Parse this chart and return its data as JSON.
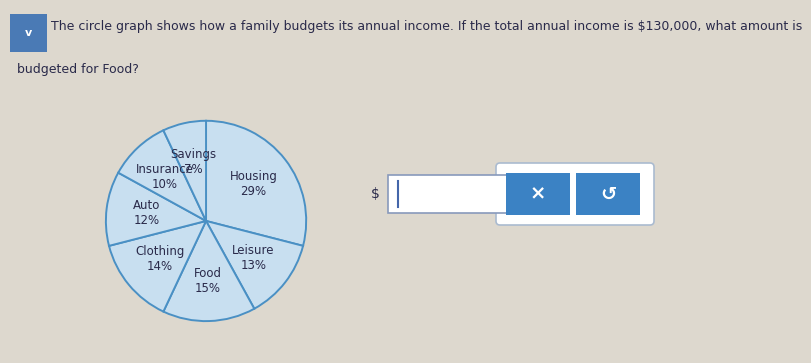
{
  "slices": [
    {
      "label": "Housing\n29%",
      "pct": 29
    },
    {
      "label": "Leisure\n13%",
      "pct": 13
    },
    {
      "label": "Food\n15%",
      "pct": 15
    },
    {
      "label": "Clothing\n14%",
      "pct": 14
    },
    {
      "label": "Auto\n12%",
      "pct": 12
    },
    {
      "label": "Insurance\n10%",
      "pct": 10
    },
    {
      "label": "Savings\n7%",
      "pct": 7
    }
  ],
  "pie_fill_color": "#c8dff0",
  "pie_edge_color": "#4a90c4",
  "pie_linewidth": 1.4,
  "bg_color": "#ddd8ce",
  "text_color": "#2a2a4a",
  "label_fontsize": 8.5,
  "question_line1": "The circle graph shows how a family budgets its annual income. If the total annual income is $130,000, what amount is",
  "question_line2": "budgeted for Food?",
  "question_fontsize": 9,
  "chevron_color": "#4a7ab5",
  "input_box_color": "#ffffff",
  "input_border_color": "#8899bb",
  "dollar_color": "#2a2a4a",
  "cursor_color": "#4466aa",
  "btn_bg_color": "#ffffff",
  "btn_blue_color": "#3b82c4",
  "btn_border_color": "#aabbd0",
  "x_symbol": "×",
  "undo_symbol": "↺"
}
